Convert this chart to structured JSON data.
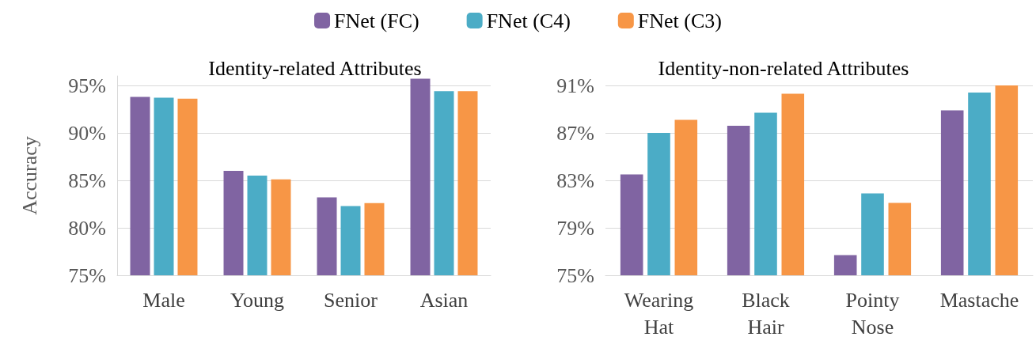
{
  "chart_data": [
    {
      "type": "bar",
      "title": "Identity-related Attributes",
      "ylabel": "Accuracy",
      "categories": [
        "Male",
        "Young",
        "Senior",
        "Asian"
      ],
      "series": [
        {
          "name": "FNet (FC)",
          "color": "#8064a2",
          "values": [
            93.8,
            86.0,
            83.2,
            95.7
          ]
        },
        {
          "name": "FNet (C4)",
          "color": "#4bacc6",
          "values": [
            93.7,
            85.5,
            82.3,
            94.4
          ]
        },
        {
          "name": "FNet (C3)",
          "color": "#f79646",
          "values": [
            93.6,
            85.1,
            82.6,
            94.4
          ]
        }
      ],
      "ylim": [
        75,
        96
      ],
      "yticks": [
        {
          "value": 75,
          "label": "75%"
        },
        {
          "value": 80,
          "label": "80%"
        },
        {
          "value": 85,
          "label": "85%"
        },
        {
          "value": 90,
          "label": "90%"
        },
        {
          "value": 95,
          "label": "95%"
        }
      ],
      "grid": "y",
      "legend": "top"
    },
    {
      "type": "bar",
      "title": "Identity-non-related Attributes",
      "categories": [
        "Wearing\nHat",
        "Black\nHair",
        "Pointy\nNose",
        "Mastache"
      ],
      "series": [
        {
          "color": "#8064a2",
          "values": [
            83.5,
            87.6,
            76.7,
            88.9
          ]
        },
        {
          "color": "#4bacc6",
          "values": [
            87.0,
            88.7,
            81.9,
            90.4
          ]
        },
        {
          "color": "#f79646",
          "values": [
            88.1,
            90.3,
            81.1,
            91.0
          ]
        }
      ],
      "ylim": [
        75,
        91
      ],
      "yticks": [
        {
          "value": 75,
          "label": "75%"
        },
        {
          "value": 79,
          "label": "79%"
        },
        {
          "value": 83,
          "label": "83%"
        },
        {
          "value": 87,
          "label": "87%"
        },
        {
          "value": 91,
          "label": "91%"
        }
      ],
      "grid": "y"
    }
  ]
}
